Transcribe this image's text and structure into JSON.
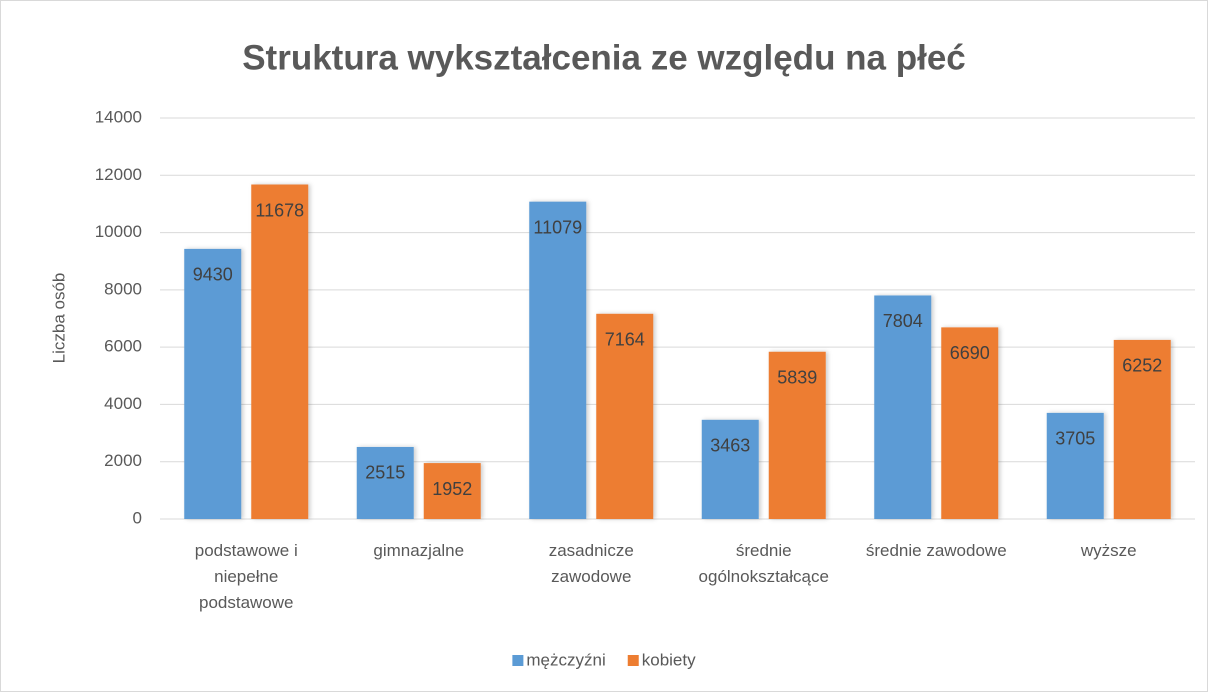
{
  "chart_data": {
    "type": "bar",
    "title": "Struktura wykształcenia ze względu na płeć",
    "y_axis_label": "Liczba osób",
    "categories": [
      "podstawowe i niepełne podstawowe",
      "gimnazjalne",
      "zasadnicze zawodowe",
      "średnie ogólnokształcące",
      "średnie zawodowe",
      "wyższe"
    ],
    "series": [
      {
        "name": "mężczyźni",
        "color": "#5b9bd5",
        "values": [
          9430,
          2515,
          11079,
          3463,
          7804,
          3705
        ]
      },
      {
        "name": "kobiety",
        "color": "#ed7d31",
        "values": [
          11678,
          1952,
          7164,
          5839,
          6690,
          6252
        ]
      }
    ],
    "ylim": [
      0,
      14000
    ],
    "yticks": [
      0,
      2000,
      4000,
      6000,
      8000,
      10000,
      12000,
      14000
    ],
    "grid": true,
    "legend": "bottom"
  }
}
